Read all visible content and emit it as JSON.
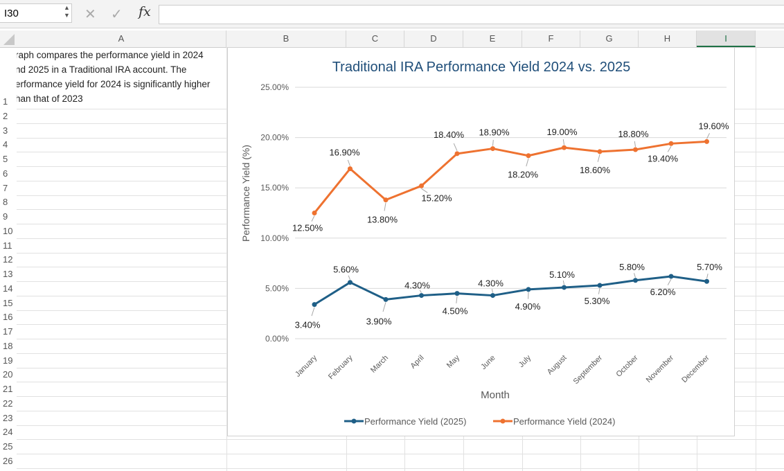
{
  "formula_bar": {
    "name_box": "I30",
    "cancel_icon": "x-icon",
    "enter_icon": "check-icon",
    "fx_label": "fx",
    "formula": ""
  },
  "columns": [
    "A",
    "B",
    "C",
    "D",
    "E",
    "F",
    "G",
    "H",
    "I"
  ],
  "selected_column": "I",
  "rows": [
    "1",
    "2",
    "3",
    "4",
    "5",
    "6",
    "7",
    "8",
    "9",
    "10",
    "11",
    "12",
    "13",
    "14",
    "15",
    "16",
    "17",
    "18",
    "19",
    "20",
    "21",
    "22",
    "23",
    "24",
    "25",
    "26"
  ],
  "cells": {
    "A1": [
      "raph compares the performance yield in 2024",
      "nd 2025 in a Traditional IRA account. The",
      "erformance yield for 2024 is significantly higher",
      "han that of 2023"
    ]
  },
  "chart_data": {
    "type": "line",
    "title": "Traditional IRA Performance Yield 2024 vs. 2025",
    "xlabel": "Month",
    "ylabel": "Performance Yield (%)",
    "categories": [
      "January",
      "February",
      "March",
      "April",
      "May",
      "June",
      "July",
      "August",
      "September",
      "October",
      "November",
      "December"
    ],
    "ylim": [
      0,
      25
    ],
    "yticks": [
      "0.00%",
      "5.00%",
      "10.00%",
      "15.00%",
      "20.00%",
      "25.00%"
    ],
    "grid": true,
    "legend": "bottom",
    "series": [
      {
        "name": "Performance Yield (2025)",
        "color": "#1f5f87",
        "values": [
          3.4,
          5.6,
          3.9,
          4.3,
          4.5,
          4.3,
          4.9,
          5.1,
          5.3,
          5.8,
          6.2,
          5.7
        ],
        "labels": [
          "3.40%",
          "5.60%",
          "3.90%",
          "4.30%",
          "4.50%",
          "4.30%",
          "4.90%",
          "5.10%",
          "5.30%",
          "5.80%",
          "6.20%",
          "5.70%"
        ]
      },
      {
        "name": "Performance Yield (2024)",
        "color": "#ee7230",
        "values": [
          12.5,
          16.9,
          13.8,
          15.2,
          18.4,
          18.9,
          18.2,
          19.0,
          18.6,
          18.8,
          19.4,
          19.6
        ],
        "labels": [
          "12.50%",
          "16.90%",
          "13.80%",
          "15.20%",
          "18.40%",
          "18.90%",
          "18.20%",
          "19.00%",
          "18.60%",
          "18.80%",
          "19.40%",
          "19.60%"
        ]
      }
    ]
  }
}
